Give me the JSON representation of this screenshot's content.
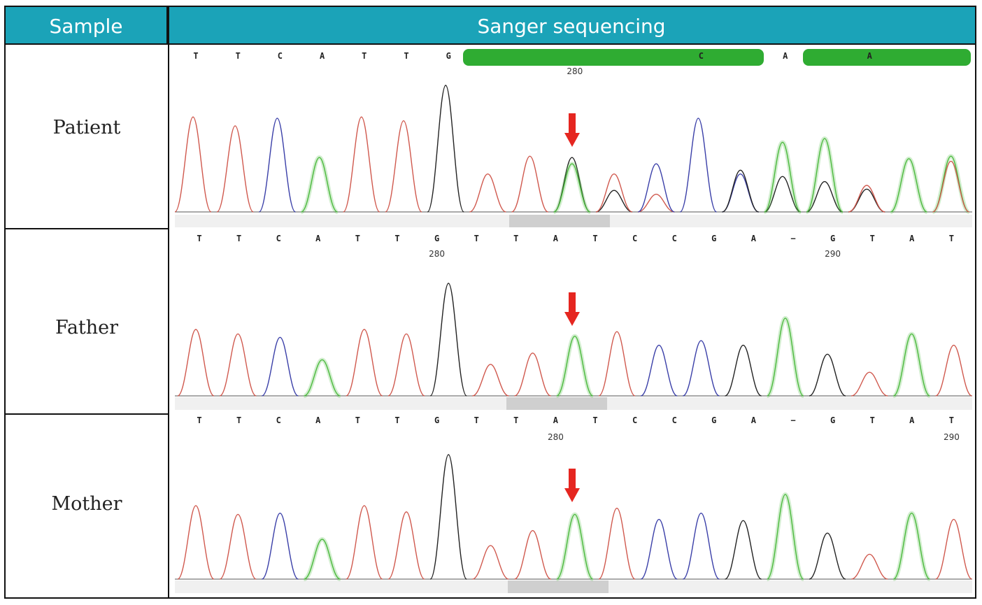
{
  "header": {
    "sample": "Sample",
    "sequencing": "Sanger sequencing"
  },
  "rows": [
    {
      "name": "Patient",
      "bases": [
        "T",
        "T",
        "C",
        "A",
        "T",
        "T",
        "G",
        "",
        "",
        "",
        "",
        "",
        "C",
        "",
        "A",
        "",
        "A",
        "",
        ""
      ],
      "ticks": [
        {
          "value": "280",
          "after_base": 9
        }
      ],
      "highlight_bars": true,
      "peaks": [
        {
          "b": "T",
          "h": 0.75
        },
        {
          "b": "T",
          "h": 0.68
        },
        {
          "b": "C",
          "h": 0.74
        },
        {
          "b": "A",
          "h": 0.43
        },
        {
          "b": "T",
          "h": 0.75
        },
        {
          "b": "T",
          "h": 0.72
        },
        {
          "b": "G",
          "h": 1.0
        },
        {
          "b": "T",
          "h": 0.3
        },
        {
          "b": "T",
          "h": 0.44
        },
        {
          "b": "A",
          "h": 0.38,
          "b2": "G",
          "h2": 0.43
        },
        {
          "b": "T",
          "h": 0.3,
          "b2": "G",
          "h2": 0.17
        },
        {
          "b": "C",
          "h": 0.38,
          "b2": "T",
          "h2": 0.14
        },
        {
          "b": "C",
          "h": 0.74
        },
        {
          "b": "G",
          "h": 0.33,
          "b2": "C",
          "h2": 0.3
        },
        {
          "b": "A",
          "h": 0.55,
          "b2": "G",
          "h2": 0.28
        },
        {
          "b": "A",
          "h": 0.58,
          "b2": "G",
          "h2": 0.24
        },
        {
          "b": "T",
          "h": 0.21,
          "b2": "G",
          "h2": 0.18
        },
        {
          "b": "A",
          "h": 0.42
        },
        {
          "b": "T",
          "h": 0.4,
          "b2": "A",
          "h2": 0.44
        }
      ]
    },
    {
      "name": "Father",
      "bases": [
        "T",
        "T",
        "C",
        "A",
        "T",
        "T",
        "G",
        "T",
        "T",
        "A",
        "T",
        "C",
        "C",
        "G",
        "A",
        "−",
        "G",
        "T",
        "A",
        "T"
      ],
      "ticks": [
        {
          "value": "280",
          "after_base": 6
        },
        {
          "value": "290",
          "after_base": 16
        }
      ],
      "highlight_bars": false,
      "peaks": [
        {
          "b": "T",
          "h": 0.59
        },
        {
          "b": "T",
          "h": 0.55
        },
        {
          "b": "C",
          "h": 0.52
        },
        {
          "b": "A",
          "h": 0.32
        },
        {
          "b": "T",
          "h": 0.59
        },
        {
          "b": "T",
          "h": 0.55
        },
        {
          "b": "G",
          "h": 1.0
        },
        {
          "b": "T",
          "h": 0.28
        },
        {
          "b": "T",
          "h": 0.38
        },
        {
          "b": "A",
          "h": 0.53
        },
        {
          "b": "T",
          "h": 0.57
        },
        {
          "b": "C",
          "h": 0.45
        },
        {
          "b": "C",
          "h": 0.49
        },
        {
          "b": "G",
          "h": 0.45
        },
        {
          "b": "A",
          "h": 0.69
        },
        {
          "b": "G",
          "h": 0.37
        },
        {
          "b": "T",
          "h": 0.21
        },
        {
          "b": "A",
          "h": 0.55
        },
        {
          "b": "T",
          "h": 0.45
        }
      ]
    },
    {
      "name": "Mother",
      "bases": [
        "T",
        "T",
        "C",
        "A",
        "T",
        "T",
        "G",
        "T",
        "T",
        "A",
        "T",
        "C",
        "C",
        "G",
        "A",
        "−",
        "G",
        "T",
        "A",
        "T"
      ],
      "ticks": [
        {
          "value": "280",
          "after_base": 9
        },
        {
          "value": "290",
          "after_base": 19
        }
      ],
      "highlight_bars": false,
      "peaks": [
        {
          "b": "T",
          "h": 0.59
        },
        {
          "b": "T",
          "h": 0.52
        },
        {
          "b": "C",
          "h": 0.53
        },
        {
          "b": "A",
          "h": 0.32
        },
        {
          "b": "T",
          "h": 0.59
        },
        {
          "b": "T",
          "h": 0.54
        },
        {
          "b": "G",
          "h": 1.0
        },
        {
          "b": "T",
          "h": 0.27
        },
        {
          "b": "T",
          "h": 0.39
        },
        {
          "b": "A",
          "h": 0.52
        },
        {
          "b": "T",
          "h": 0.57
        },
        {
          "b": "C",
          "h": 0.48
        },
        {
          "b": "C",
          "h": 0.53
        },
        {
          "b": "G",
          "h": 0.47
        },
        {
          "b": "A",
          "h": 0.68
        },
        {
          "b": "G",
          "h": 0.37
        },
        {
          "b": "T",
          "h": 0.2
        },
        {
          "b": "A",
          "h": 0.53
        },
        {
          "b": "T",
          "h": 0.48
        }
      ]
    }
  ],
  "colors": {
    "header_bg": "#1ba3b8",
    "A": "#4cba3e",
    "C": "#3a3fa8",
    "G": "#222222",
    "T": "#d0594e",
    "arrow": "#e52620",
    "highlight_bar": "#18a31c"
  }
}
